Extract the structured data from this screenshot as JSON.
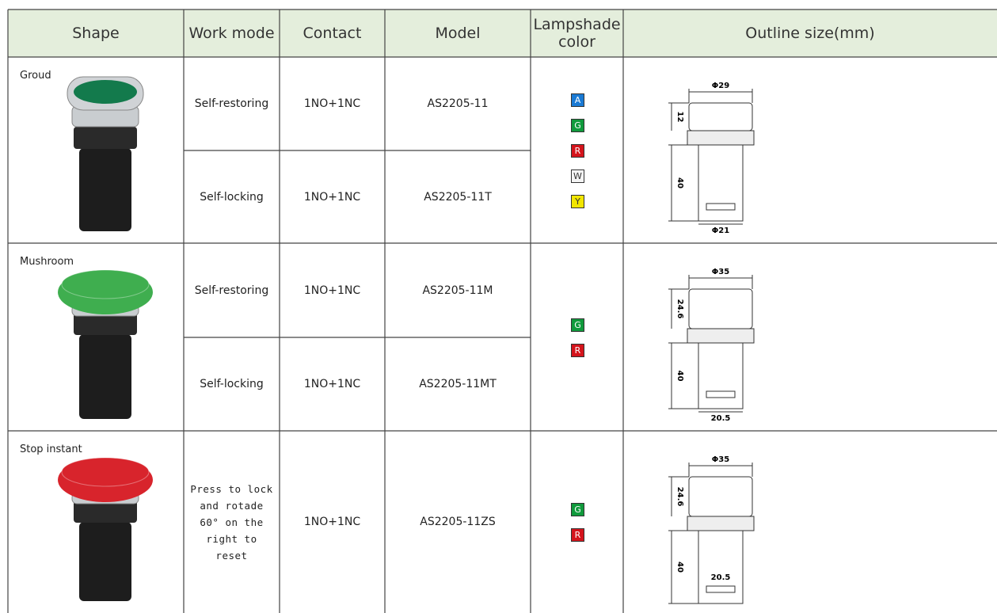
{
  "header": [
    "Shape",
    "Work mode",
    "Contact",
    "Model",
    "Lampshade color",
    "Outline size(mm)"
  ],
  "groups": [
    {
      "shape": "Groud",
      "rows": [
        {
          "mode": "Self-restoring",
          "contact": "1NO+1NC",
          "model": "AS2205-11"
        },
        {
          "mode": "Self-locking",
          "contact": "1NO+1NC",
          "model": "AS2205-11T"
        }
      ],
      "colors": [
        {
          "letter": "A",
          "color": "#1a7ad4"
        },
        {
          "letter": "G",
          "color": "#109a3c"
        },
        {
          "letter": "R",
          "color": "#d4141c"
        },
        {
          "letter": "W",
          "color": "#f4f4f4"
        },
        {
          "letter": "Y",
          "color": "#f2e600"
        }
      ],
      "dims": {
        "top": "Φ29",
        "upper": "12",
        "lower": "40",
        "bottom": "Φ21"
      }
    },
    {
      "shape": "Mushroom",
      "rows": [
        {
          "mode": "Self-restoring",
          "contact": "1NO+1NC",
          "model": "AS2205-11M"
        },
        {
          "mode": "Self-locking",
          "contact": "1NO+1NC",
          "model": "AS2205-11MT"
        }
      ],
      "colors": [
        {
          "letter": "G",
          "color": "#109a3c"
        },
        {
          "letter": "R",
          "color": "#d4141c"
        }
      ],
      "dims": {
        "top": "Φ35",
        "upper": "24.6",
        "lower": "40",
        "bottom": "20.5"
      }
    },
    {
      "shape": "Stop instant",
      "rows": [
        {
          "mode": "Press to lock and rotade 60° on the right to reset",
          "contact": "1NO+1NC",
          "model": "AS2205-11ZS"
        }
      ],
      "colors": [
        {
          "letter": "G",
          "color": "#109a3c"
        },
        {
          "letter": "R",
          "color": "#d4141c"
        }
      ],
      "dims": {
        "top": "Φ35",
        "upper": "24.6",
        "lower": "40",
        "bottom": "20.5"
      }
    }
  ]
}
